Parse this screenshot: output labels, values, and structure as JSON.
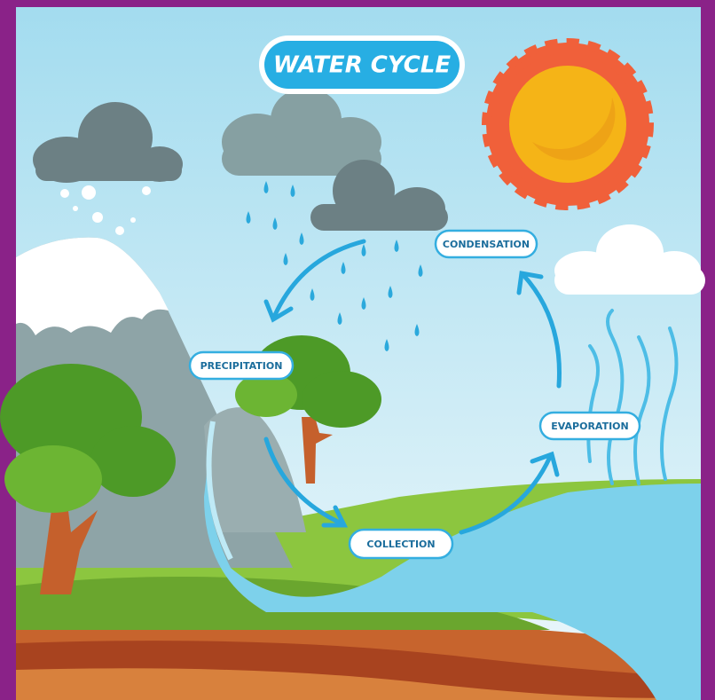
{
  "title": "WATER CYCLE",
  "stages": [
    {
      "label": "CONDENSATION"
    },
    {
      "label": "PRECIPITATION"
    },
    {
      "label": "EVAPORATION"
    },
    {
      "label": "COLLECTION"
    }
  ]
}
